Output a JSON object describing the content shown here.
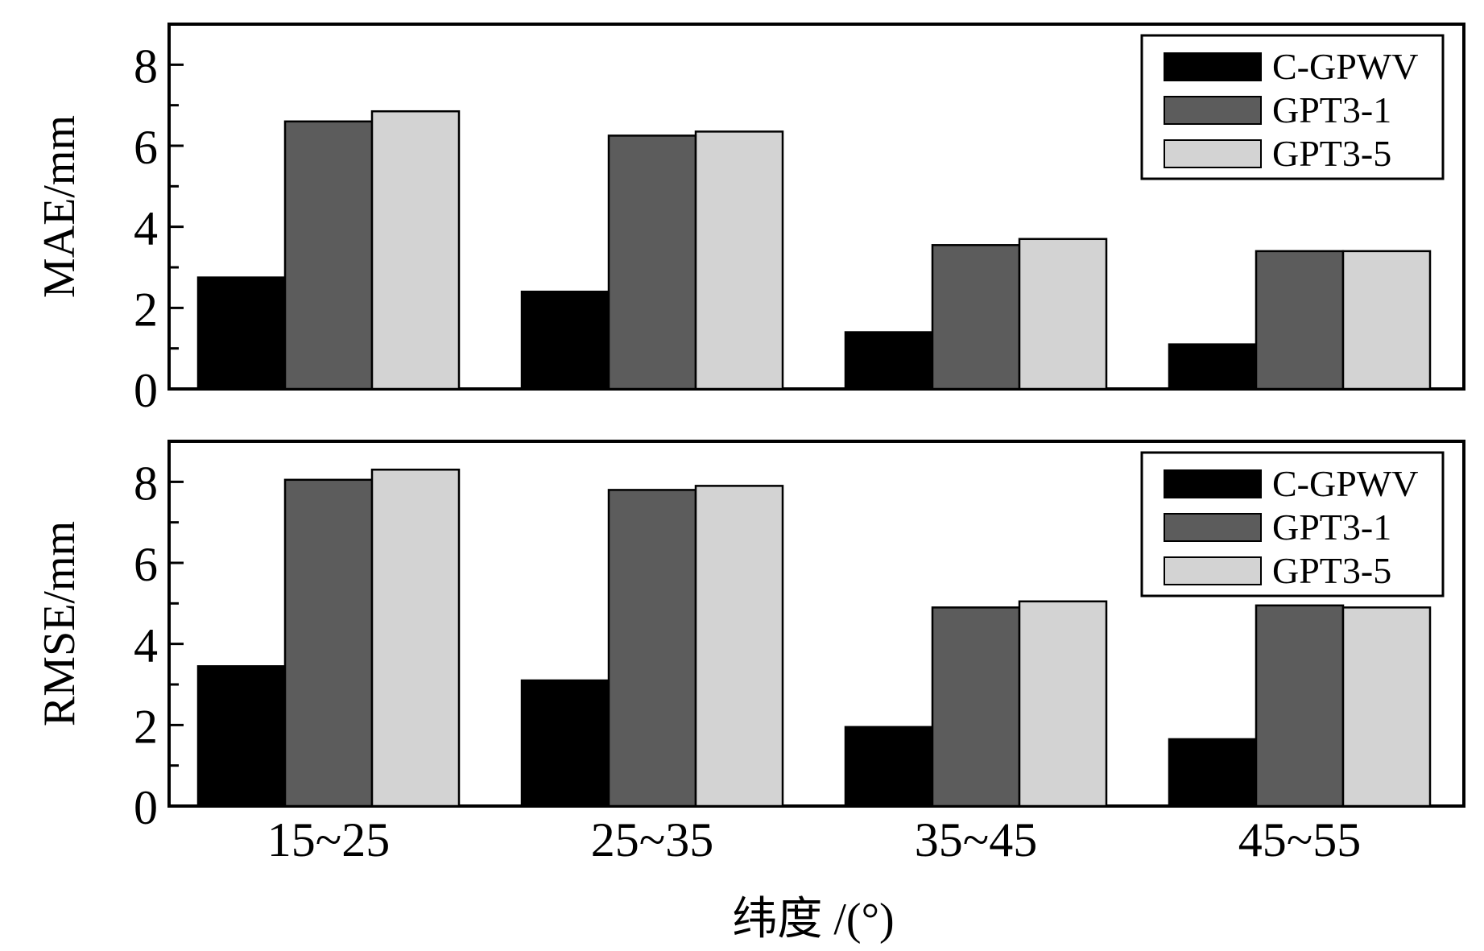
{
  "xlabel": "纬度 /(°)",
  "chart_data": [
    {
      "type": "bar",
      "categories": [
        "15~25",
        "25~35",
        "35~45",
        "45~55"
      ],
      "ylabel": "MAE/mm",
      "ylim": [
        0,
        9
      ],
      "yticks": [
        0,
        2,
        4,
        6,
        8
      ],
      "legend_position": "top-right",
      "series": [
        {
          "name": "C-GPWV",
          "color": "#000000",
          "values": [
            2.75,
            2.4,
            1.4,
            1.1
          ]
        },
        {
          "name": "GPT3-1",
          "color": "#5c5c5c",
          "values": [
            6.6,
            6.25,
            3.55,
            3.4
          ]
        },
        {
          "name": "GPT3-5",
          "color": "#d3d3d3",
          "values": [
            6.85,
            6.35,
            3.7,
            3.4
          ]
        }
      ]
    },
    {
      "type": "bar",
      "categories": [
        "15~25",
        "25~35",
        "35~45",
        "45~55"
      ],
      "ylabel": "RMSE/mm",
      "ylim": [
        0,
        9
      ],
      "yticks": [
        0,
        2,
        4,
        6,
        8
      ],
      "legend_position": "top-right",
      "series": [
        {
          "name": "C-GPWV",
          "color": "#000000",
          "values": [
            3.45,
            3.1,
            1.95,
            1.65
          ]
        },
        {
          "name": "GPT3-1",
          "color": "#5c5c5c",
          "values": [
            8.05,
            7.8,
            4.9,
            4.95
          ]
        },
        {
          "name": "GPT3-5",
          "color": "#d3d3d3",
          "values": [
            8.3,
            7.9,
            5.05,
            4.9
          ]
        }
      ]
    }
  ]
}
